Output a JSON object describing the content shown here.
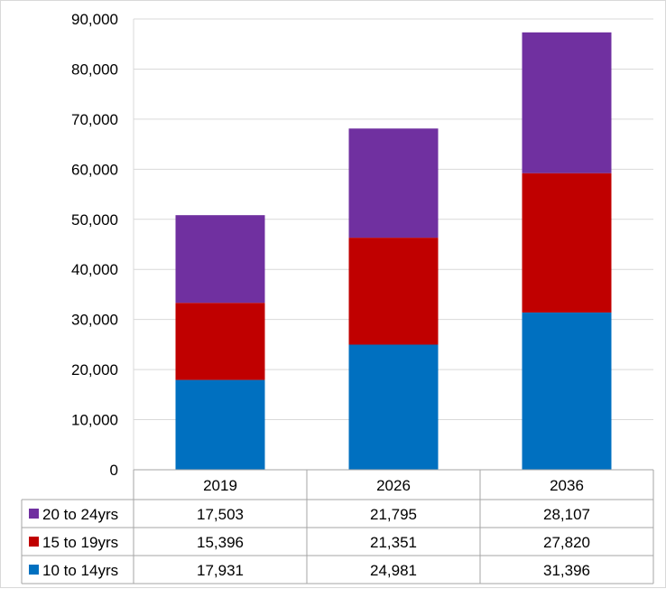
{
  "chart_data": {
    "type": "bar",
    "stacked": true,
    "categories": [
      "2019",
      "2026",
      "2036"
    ],
    "series": [
      {
        "name": "10 to 14yrs",
        "color": "#0070C0",
        "values": [
          17931,
          24981,
          31396
        ],
        "labels": [
          "17,931",
          "24,981",
          "31,396"
        ]
      },
      {
        "name": "15 to 19yrs",
        "color": "#C00000",
        "values": [
          15396,
          21351,
          27820
        ],
        "labels": [
          "15,396",
          "21,351",
          "27,820"
        ]
      },
      {
        "name": "20 to 24yrs",
        "color": "#7030A0",
        "values": [
          17503,
          21795,
          28107
        ],
        "labels": [
          "17,503",
          "21,795",
          "28,107"
        ]
      }
    ],
    "table_row_order": [
      "20 to 24yrs",
      "15 to 19yrs",
      "10 to 14yrs"
    ],
    "ylim": [
      0,
      90000
    ],
    "y_ticks": [
      "0",
      "10,000",
      "20,000",
      "30,000",
      "40,000",
      "50,000",
      "60,000",
      "70,000",
      "80,000",
      "90,000"
    ],
    "grid": true,
    "legend": "data-table"
  }
}
